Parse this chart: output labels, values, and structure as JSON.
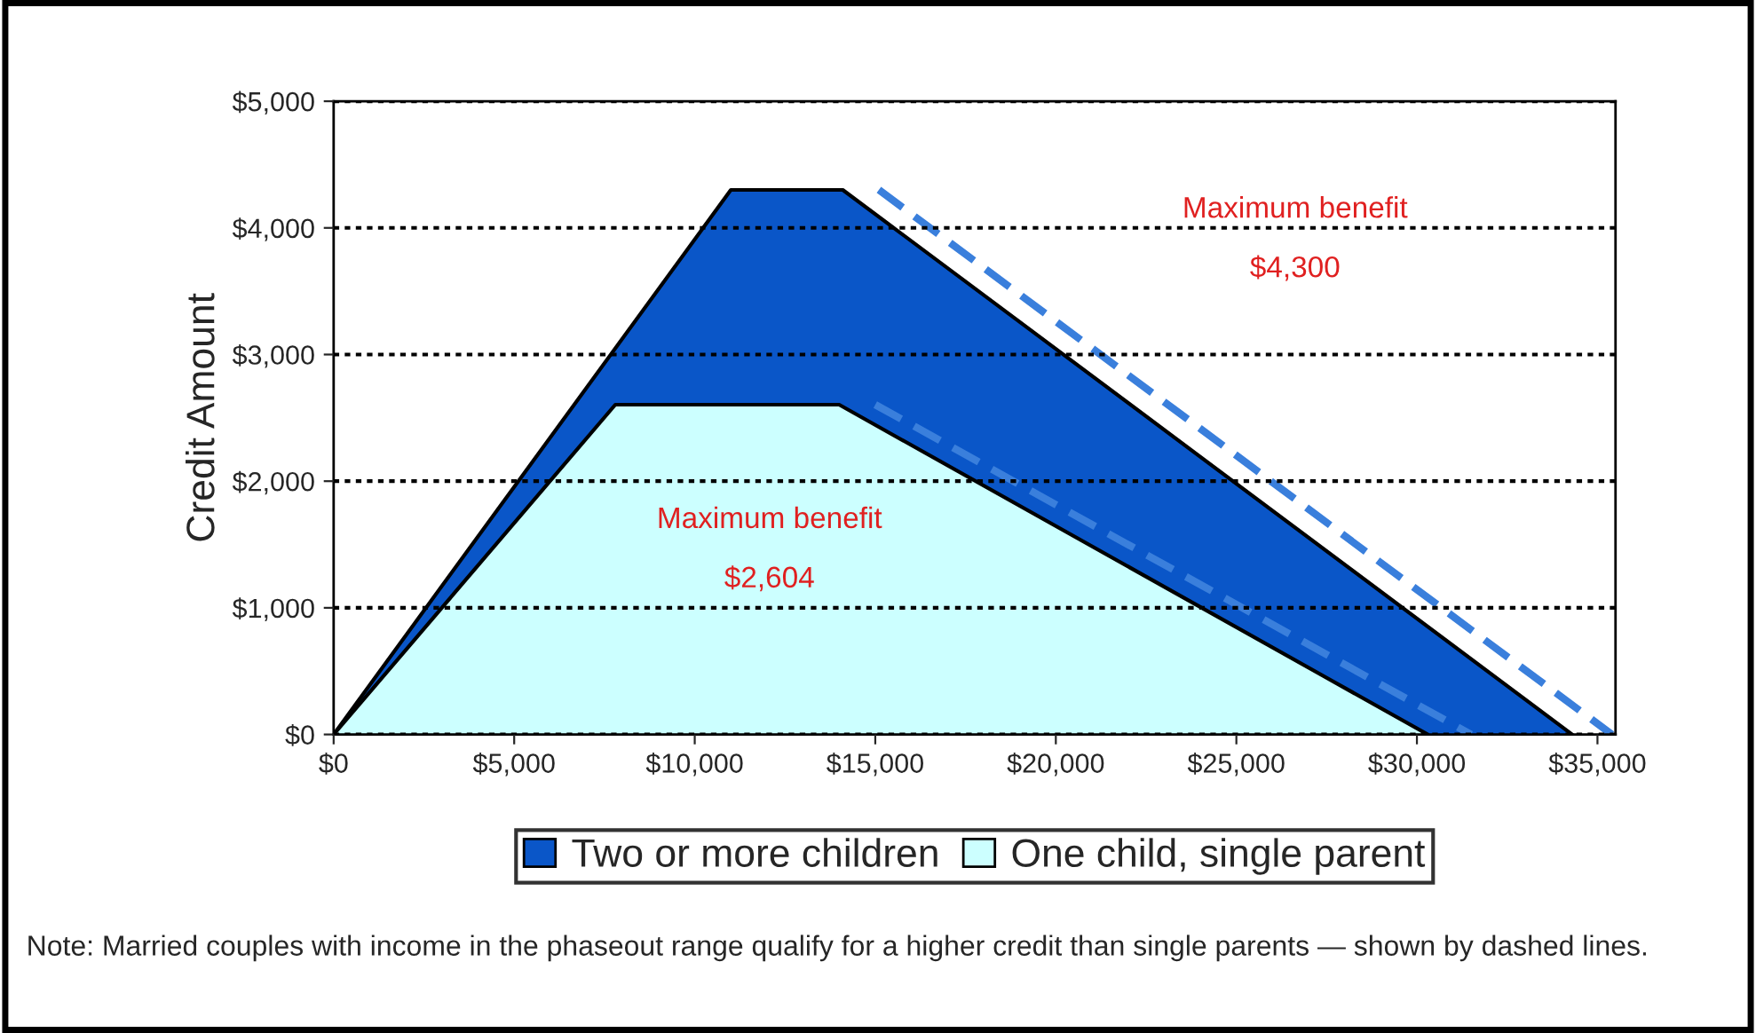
{
  "chart_data": {
    "type": "area",
    "ylabel": "Credit Amount",
    "xlim": [
      0,
      35500
    ],
    "ylim": [
      0,
      5000
    ],
    "xticks": [
      {
        "value": 0,
        "label": "$0"
      },
      {
        "value": 5000,
        "label": "$5,000"
      },
      {
        "value": 10000,
        "label": "$10,000"
      },
      {
        "value": 15000,
        "label": "$15,000"
      },
      {
        "value": 20000,
        "label": "$20,000"
      },
      {
        "value": 25000,
        "label": "$25,000"
      },
      {
        "value": 30000,
        "label": "$30,000"
      },
      {
        "value": 35000,
        "label": "$35,000"
      }
    ],
    "yticks": [
      {
        "value": 0,
        "label": "$0"
      },
      {
        "value": 1000,
        "label": "$1,000"
      },
      {
        "value": 2000,
        "label": "$2,000"
      },
      {
        "value": 3000,
        "label": "$3,000"
      },
      {
        "value": 4000,
        "label": "$4,000"
      },
      {
        "value": 5000,
        "label": "$5,000"
      }
    ],
    "series": [
      {
        "name": "Two or more children",
        "color": "#0a56c8",
        "x": [
          0,
          11000,
          14100,
          34300
        ],
        "values": [
          0,
          4300,
          4300,
          0
        ]
      },
      {
        "name": "One child, single parent",
        "color": "#ccffff",
        "x": [
          0,
          7800,
          14000,
          30300
        ],
        "values": [
          0,
          2604,
          2604,
          0
        ]
      },
      {
        "type": "line",
        "color": "#3a7fdc",
        "line_style": "dashed",
        "x": [
          15100,
          35400
        ],
        "values": [
          4300,
          0
        ]
      },
      {
        "type": "line",
        "color": "#3a7fdc",
        "line_style": "dashed",
        "x": [
          15000,
          31500
        ],
        "values": [
          2604,
          0
        ]
      }
    ],
    "grid": "y",
    "legend": "bottom",
    "annotations": [
      "Maximum benefit\n\n$4,300",
      "Maximum benefit\n\n$2,604",
      "Note: Married couples with income in the phaseout range qualify for a higher credit than single parents — shown by dashed lines."
    ]
  }
}
